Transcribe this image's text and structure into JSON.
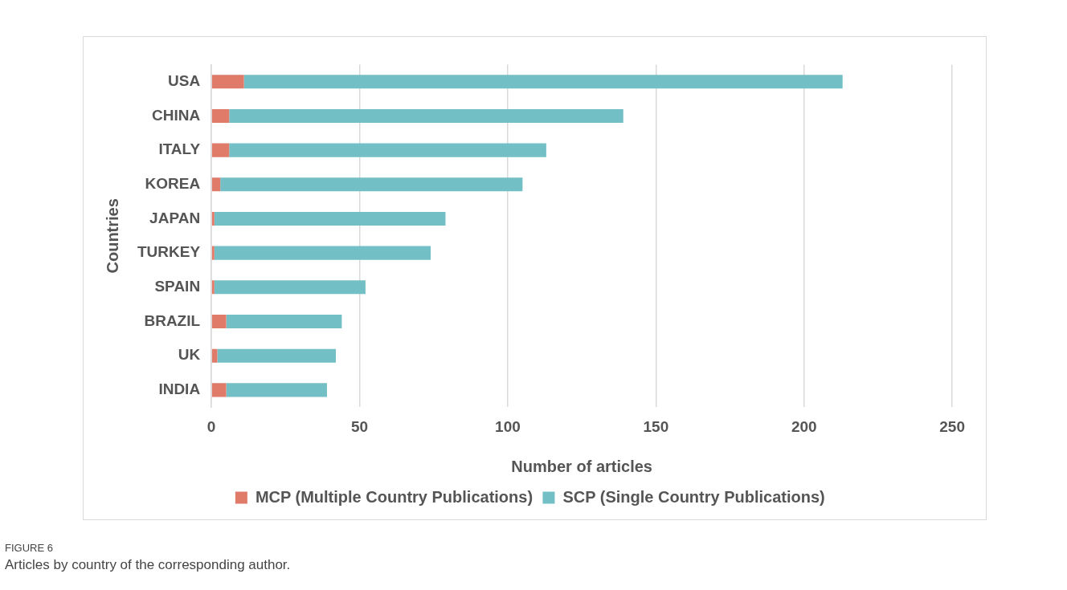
{
  "chart_data": {
    "type": "bar",
    "orientation": "horizontal",
    "stacked": true,
    "categories": [
      "USA",
      "CHINA",
      "ITALY",
      "KOREA",
      "JAPAN",
      "TURKEY",
      "SPAIN",
      "BRAZIL",
      "UK",
      "INDIA"
    ],
    "series": [
      {
        "name": "MCP (Multiple Country Publications)",
        "color": "#e07b6a",
        "values": [
          11,
          6,
          6,
          3,
          1,
          1,
          1,
          5,
          2,
          5
        ]
      },
      {
        "name": "SCP (Single Country Publications)",
        "color": "#72c0c6",
        "values": [
          202,
          133,
          107,
          102,
          78,
          73,
          51,
          39,
          40,
          34
        ]
      }
    ],
    "xlim": [
      0,
      250
    ],
    "xticks": [
      0,
      50,
      100,
      150,
      200,
      250
    ],
    "xlabel": "Number of articles",
    "ylabel": "Countries",
    "grid": "x",
    "legend": "bottom",
    "annotations": [
      "FIGURE 6",
      "Articles by country of the corresponding author."
    ]
  }
}
